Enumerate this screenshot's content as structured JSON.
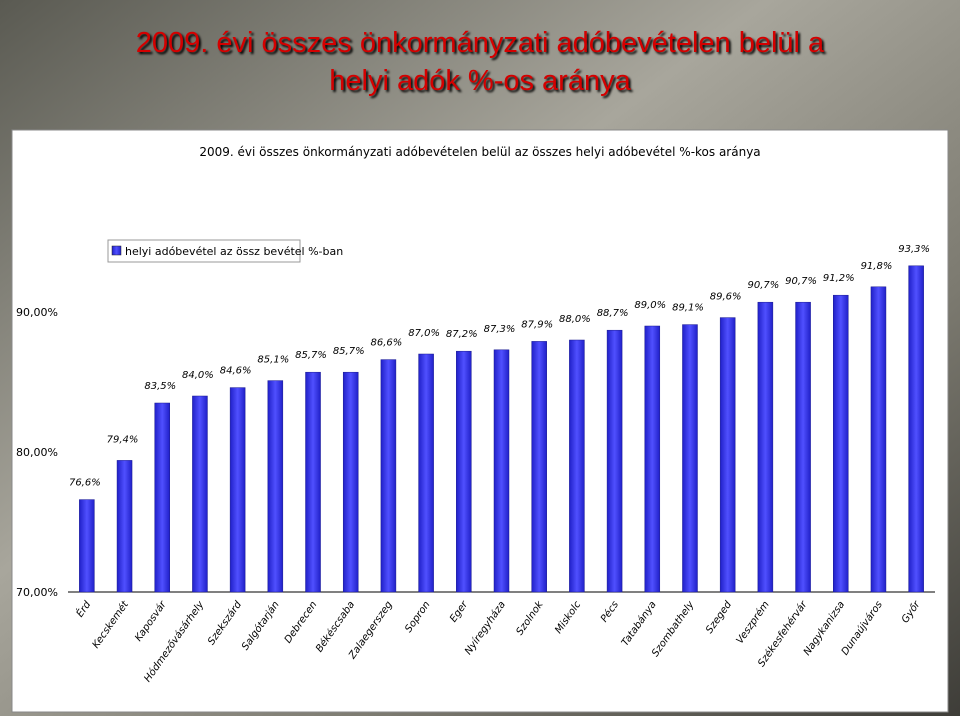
{
  "slide_title": "2009. évi összes önkormányzati adóbevételen belül a helyi adók %-os aránya",
  "chart_data": {
    "type": "bar",
    "title": "2009. évi összes önkormányzati adóbevételen belül az összes helyi adóbevétel %-kos aránya",
    "categories": [
      "Érd",
      "Kecskemét",
      "Kaposvár",
      "Hódmezővásárhely",
      "Szekszárd",
      "Salgótarján",
      "Debrecen",
      "Békéscsaba",
      "Zalaegerszeg",
      "Sopron",
      "Eger",
      "Nyíregyháza",
      "Szolnok",
      "Miskolc",
      "Pécs",
      "Tatabánya",
      "Szombathely",
      "Szeged",
      "Veszprém",
      "Székesfehérvár",
      "Nagykanizsa",
      "Dunaújváros",
      "Győr"
    ],
    "series": [
      {
        "name": "helyi adóbevétel az össz bevétel %-ban",
        "color": "#3535f0",
        "values": [
          76.6,
          79.4,
          83.5,
          84.0,
          84.6,
          85.1,
          85.7,
          85.7,
          86.6,
          87.0,
          87.2,
          87.3,
          87.9,
          88.0,
          88.7,
          89.0,
          89.1,
          89.6,
          90.7,
          90.7,
          91.2,
          91.8,
          93.3
        ],
        "value_labels": [
          "76,6%",
          "79,4%",
          "83,5%",
          "84,0%",
          "84,6%",
          "85,1%",
          "85,7%",
          "85,7%",
          "86,6%",
          "87,0%",
          "87,2%",
          "87,3%",
          "87,9%",
          "88,0%",
          "88,7%",
          "89,0%",
          "89,1%",
          "89,6%",
          "90,7%",
          "90,7%",
          "91,2%",
          "91,8%",
          "93,3%"
        ]
      }
    ],
    "ylim": [
      70,
      95
    ],
    "yticks": [
      {
        "value": 70,
        "label": "70,00%"
      },
      {
        "value": 80,
        "label": "80,00%"
      },
      {
        "value": 90,
        "label": "90,00%"
      }
    ],
    "legend": "top-left"
  }
}
